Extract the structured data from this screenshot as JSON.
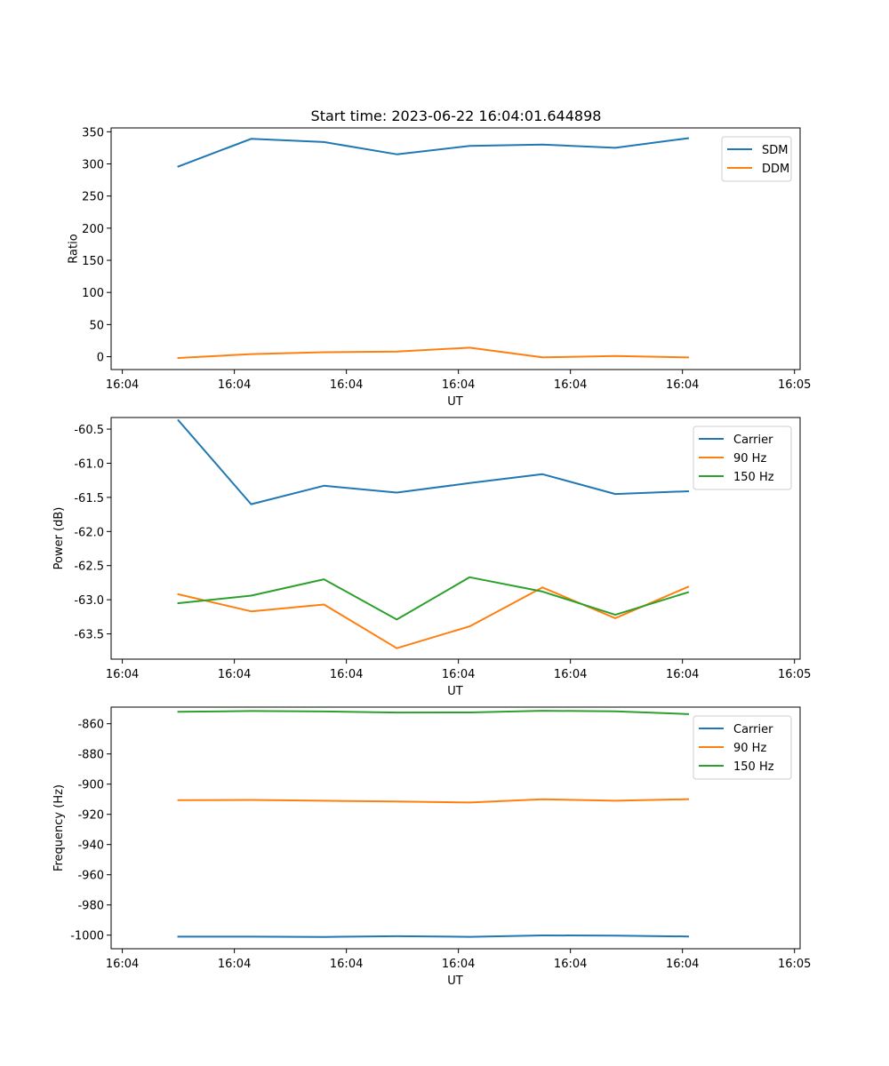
{
  "figure": {
    "title": "Start time: 2023-06-22 16:04:01.644898"
  },
  "chart_data": [
    {
      "type": "line",
      "title": "Start time: 2023-06-22 16:04:01.644898",
      "xlabel": "UT",
      "ylabel": "Ratio",
      "x_tick_labels": [
        "16:04",
        "16:04",
        "16:04",
        "16:04",
        "16:04",
        "16:04",
        "16:05"
      ],
      "x": [
        0.5,
        1.15,
        1.8,
        2.45,
        3.1,
        3.75,
        4.4,
        5.05
      ],
      "xlim": [
        -0.1,
        6.05
      ],
      "y_ticks": [
        0,
        50,
        100,
        150,
        200,
        250,
        300,
        350
      ],
      "ylim": [
        -20,
        356
      ],
      "grid": false,
      "legend_position": "top-right",
      "series": [
        {
          "name": "SDM",
          "color": "#1f77b4",
          "values": [
            296,
            339,
            334,
            315,
            328,
            330,
            325,
            340
          ]
        },
        {
          "name": "DDM",
          "color": "#ff7f0e",
          "values": [
            -2,
            4,
            7,
            8,
            14,
            -1,
            1,
            -1
          ]
        }
      ]
    },
    {
      "type": "line",
      "xlabel": "UT",
      "ylabel": "Power (dB)",
      "x_tick_labels": [
        "16:04",
        "16:04",
        "16:04",
        "16:04",
        "16:04",
        "16:04",
        "16:05"
      ],
      "x": [
        0.5,
        1.15,
        1.8,
        2.45,
        3.1,
        3.75,
        4.4,
        5.05
      ],
      "xlim": [
        -0.1,
        6.05
      ],
      "y_ticks": [
        -63.5,
        -63.0,
        -62.5,
        -62.0,
        -61.5,
        -61.0,
        -60.5
      ],
      "y_tick_labels": [
        "-63.5",
        "-63.0",
        "-62.5",
        "-62.0",
        "-61.5",
        "-61.0",
        "-60.5"
      ],
      "ylim": [
        -63.87,
        -60.33
      ],
      "grid": false,
      "legend_position": "top-right",
      "series": [
        {
          "name": "Carrier",
          "color": "#1f77b4",
          "values": [
            -60.37,
            -61.6,
            -61.33,
            -61.43,
            -61.29,
            -61.16,
            -61.45,
            -61.41
          ]
        },
        {
          "name": "90 Hz",
          "color": "#ff7f0e",
          "values": [
            -62.92,
            -63.17,
            -63.07,
            -63.71,
            -63.39,
            -62.82,
            -63.27,
            -62.81
          ]
        },
        {
          "name": "150 Hz",
          "color": "#2ca02c",
          "values": [
            -63.05,
            -62.94,
            -62.7,
            -63.29,
            -62.67,
            -62.88,
            -63.22,
            -62.89
          ]
        }
      ]
    },
    {
      "type": "line",
      "xlabel": "UT",
      "ylabel": "Frequency (Hz)",
      "x_tick_labels": [
        "16:04",
        "16:04",
        "16:04",
        "16:04",
        "16:04",
        "16:04",
        "16:05"
      ],
      "x": [
        0.5,
        1.15,
        1.8,
        2.45,
        3.1,
        3.75,
        4.4,
        5.05
      ],
      "xlim": [
        -0.1,
        6.05
      ],
      "y_ticks": [
        -1000,
        -980,
        -960,
        -940,
        -920,
        -900,
        -880,
        -860
      ],
      "ylim": [
        -1009,
        -849
      ],
      "grid": false,
      "legend_position": "top-right",
      "series": [
        {
          "name": "Carrier",
          "color": "#1f77b4",
          "values": [
            -1001,
            -1001,
            -1001.2,
            -1000.7,
            -1001.1,
            -1000.2,
            -1000.3,
            -1000.9
          ]
        },
        {
          "name": "90 Hz",
          "color": "#ff7f0e",
          "values": [
            -910.6,
            -910.5,
            -911,
            -911.5,
            -912.2,
            -910,
            -911,
            -910
          ]
        },
        {
          "name": "150 Hz",
          "color": "#2ca02c",
          "values": [
            -852.1,
            -851.6,
            -851.9,
            -852.6,
            -852.5,
            -851.4,
            -851.8,
            -853.6
          ]
        }
      ]
    }
  ]
}
